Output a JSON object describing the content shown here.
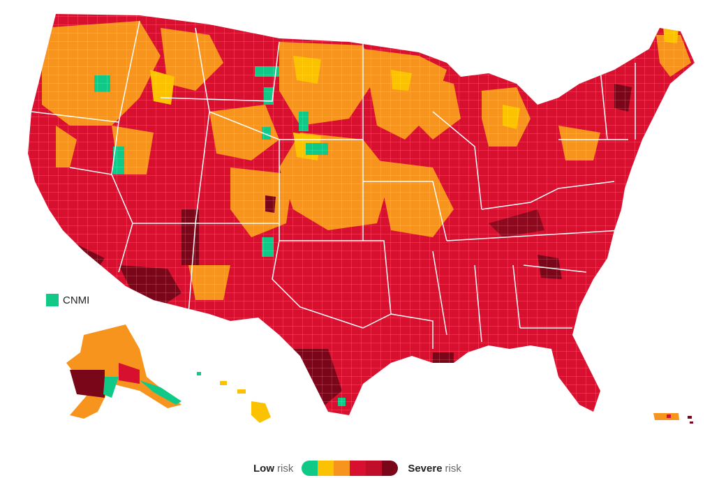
{
  "legend": {
    "low_word": "Low",
    "low_suffix": "risk",
    "severe_word": "Severe",
    "severe_suffix": "risk",
    "levels": [
      "#10c987",
      "#fbc202",
      "#f7941d",
      "#d7102f",
      "#c00e2a",
      "#7a0719"
    ]
  },
  "territories": {
    "cnmi_label": "CNMI"
  },
  "colors": {
    "low": "#10c987",
    "moderate": "#fbc202",
    "substantial": "#f7941d",
    "high": "#d7102f",
    "severe": "#7a0719",
    "borders": "#ffffff"
  }
}
